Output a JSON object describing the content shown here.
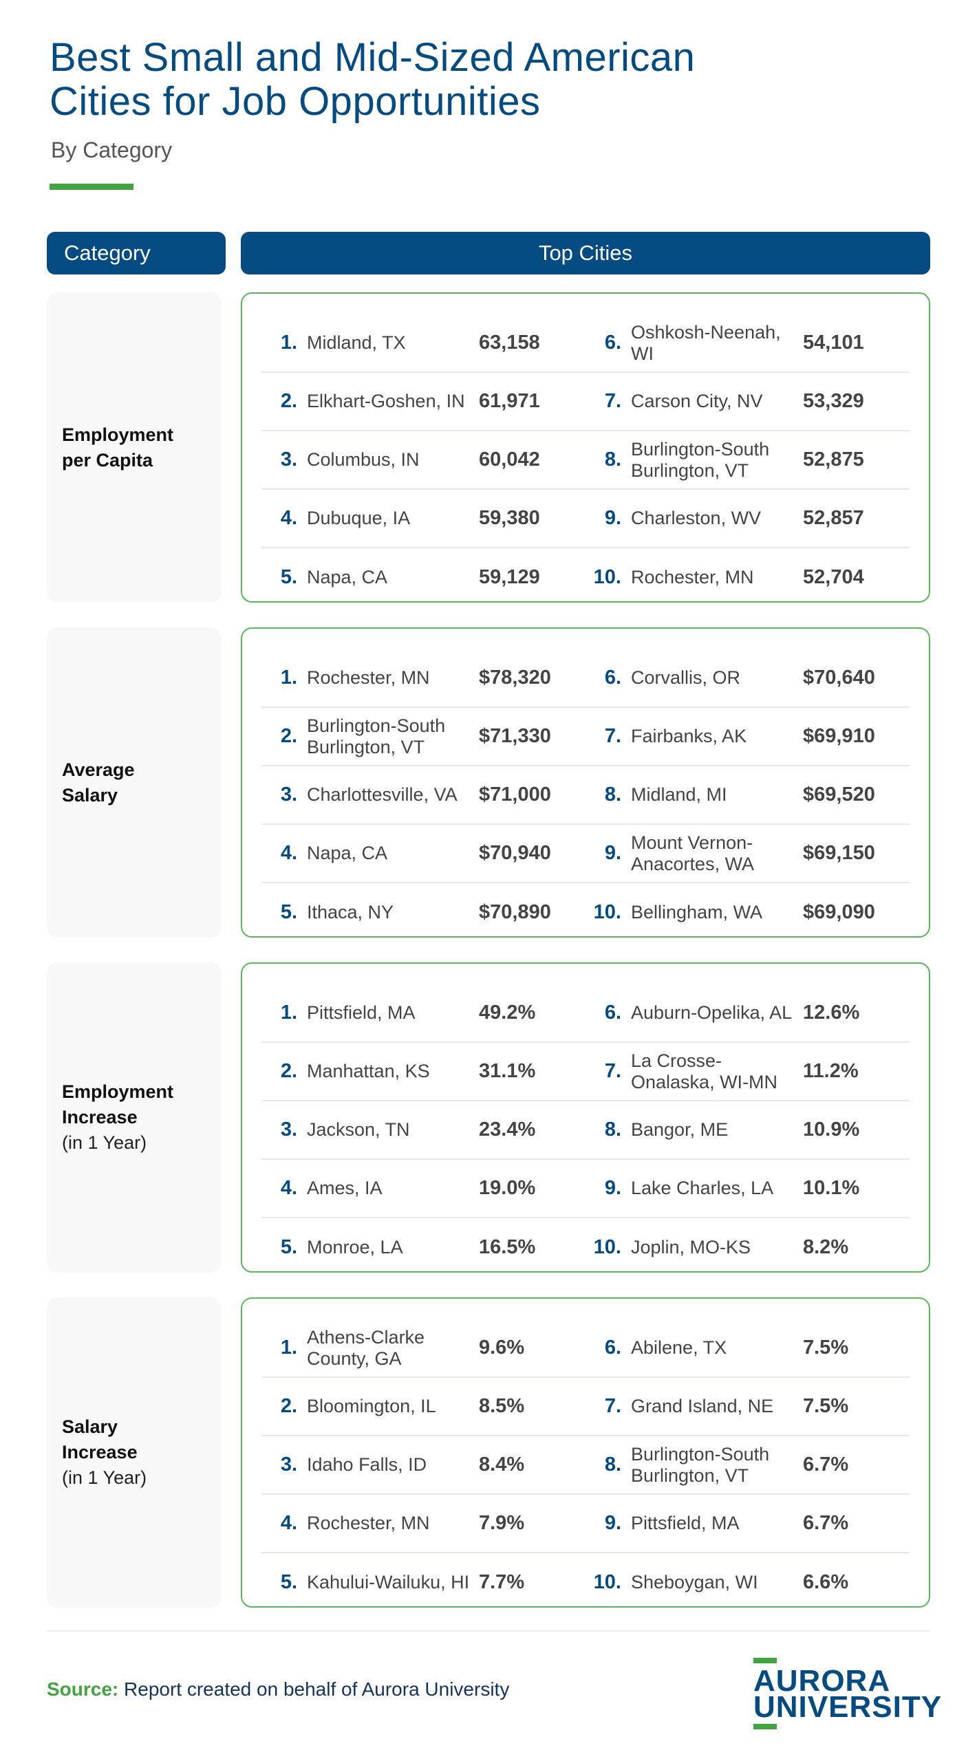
{
  "header": {
    "title_line1": "Best Small and Mid-Sized American",
    "title_line2": "Cities for Job Opportunities",
    "subtitle": "By Category"
  },
  "columns": {
    "category": "Category",
    "top_cities": "Top Cities"
  },
  "categories": [
    {
      "title_line1": "Employment",
      "title_line2": "per Capita",
      "sub": "",
      "rows": [
        {
          "rank": "1.",
          "city": "Midland, TX",
          "value": "63,158"
        },
        {
          "rank": "2.",
          "city": "Elkhart-Goshen, IN",
          "value": "61,971"
        },
        {
          "rank": "3.",
          "city": "Columbus, IN",
          "value": "60,042"
        },
        {
          "rank": "4.",
          "city": "Dubuque, IA",
          "value": "59,380"
        },
        {
          "rank": "5.",
          "city": "Napa, CA",
          "value": "59,129"
        },
        {
          "rank": "6.",
          "city": "Oshkosh-Neenah, WI",
          "value": "54,101"
        },
        {
          "rank": "7.",
          "city": "Carson City, NV",
          "value": "53,329"
        },
        {
          "rank": "8.",
          "city": "Burlington-South Burlington, VT",
          "value": "52,875"
        },
        {
          "rank": "9.",
          "city": "Charleston, WV",
          "value": "52,857"
        },
        {
          "rank": "10.",
          "city": "Rochester, MN",
          "value": "52,704"
        }
      ]
    },
    {
      "title_line1": "Average",
      "title_line2": "Salary",
      "sub": "",
      "rows": [
        {
          "rank": "1.",
          "city": "Rochester, MN",
          "value": "$78,320"
        },
        {
          "rank": "2.",
          "city": "Burlington-South Burlington, VT",
          "value": "$71,330"
        },
        {
          "rank": "3.",
          "city": "Charlottesville, VA",
          "value": "$71,000"
        },
        {
          "rank": "4.",
          "city": "Napa, CA",
          "value": "$70,940"
        },
        {
          "rank": "5.",
          "city": "Ithaca, NY",
          "value": "$70,890"
        },
        {
          "rank": "6.",
          "city": "Corvallis, OR",
          "value": "$70,640"
        },
        {
          "rank": "7.",
          "city": "Fairbanks, AK",
          "value": "$69,910"
        },
        {
          "rank": "8.",
          "city": "Midland, MI",
          "value": "$69,520"
        },
        {
          "rank": "9.",
          "city": "Mount Vernon-Anacortes, WA",
          "value": "$69,150"
        },
        {
          "rank": "10.",
          "city": "Bellingham, WA",
          "value": "$69,090"
        }
      ]
    },
    {
      "title_line1": "Employment",
      "title_line2": "Increase",
      "sub": "(in 1 Year)",
      "rows": [
        {
          "rank": "1.",
          "city": "Pittsfield, MA",
          "value": "49.2%"
        },
        {
          "rank": "2.",
          "city": "Manhattan, KS",
          "value": "31.1%"
        },
        {
          "rank": "3.",
          "city": "Jackson, TN",
          "value": "23.4%"
        },
        {
          "rank": "4.",
          "city": "Ames, IA",
          "value": "19.0%"
        },
        {
          "rank": "5.",
          "city": "Monroe, LA",
          "value": "16.5%"
        },
        {
          "rank": "6.",
          "city": "Auburn-Opelika, AL",
          "value": "12.6%"
        },
        {
          "rank": "7.",
          "city": "La Crosse-Onalaska, WI-MN",
          "value": "11.2%"
        },
        {
          "rank": "8.",
          "city": "Bangor, ME",
          "value": "10.9%"
        },
        {
          "rank": "9.",
          "city": "Lake Charles, LA",
          "value": "10.1%"
        },
        {
          "rank": "10.",
          "city": "Joplin, MO-KS",
          "value": "8.2%"
        }
      ]
    },
    {
      "title_line1": "Salary",
      "title_line2": "Increase",
      "sub": "(in 1 Year)",
      "rows": [
        {
          "rank": "1.",
          "city": "Athens-Clarke County, GA",
          "value": "9.6%"
        },
        {
          "rank": "2.",
          "city": "Bloomington, IL",
          "value": "8.5%"
        },
        {
          "rank": "3.",
          "city": "Idaho Falls, ID",
          "value": "8.4%"
        },
        {
          "rank": "4.",
          "city": "Rochester, MN",
          "value": "7.9%"
        },
        {
          "rank": "5.",
          "city": "Kahului-Wailuku, HI",
          "value": "7.7%"
        },
        {
          "rank": "6.",
          "city": "Abilene, TX",
          "value": "7.5%"
        },
        {
          "rank": "7.",
          "city": "Grand Island, NE",
          "value": "7.5%"
        },
        {
          "rank": "8.",
          "city": "Burlington-South Burlington, VT",
          "value": "6.7%"
        },
        {
          "rank": "9.",
          "city": "Pittsfield, MA",
          "value": "6.7%"
        },
        {
          "rank": "10.",
          "city": "Sheboygan, WI",
          "value": "6.6%"
        }
      ]
    }
  ],
  "footer": {
    "source_label": "Source:",
    "source_text": " Report created on behalf of Aurora University",
    "logo_line1": "AURORA",
    "logo_line2": "UNIVERSITY"
  },
  "colors": {
    "brand_blue": "#044b81",
    "accent_green": "#43a340",
    "panel_border": "#5bb85a"
  }
}
